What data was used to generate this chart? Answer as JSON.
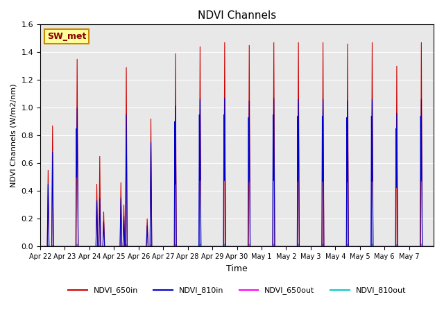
{
  "title": "NDVI Channels",
  "ylabel": "NDVI Channels (W/m2/nm)",
  "xlabel": "Time",
  "ylim": [
    0,
    1.6
  ],
  "background_color": "#e8e8e8",
  "annotation_text": "SW_met",
  "annotation_bg": "#ffff99",
  "annotation_border": "#cc8800",
  "series": {
    "NDVI_650in": {
      "color": "#cc0000",
      "lw": 0.8
    },
    "NDVI_810in": {
      "color": "#0000cc",
      "lw": 0.8
    },
    "NDVI_650out": {
      "color": "#ff00ff",
      "lw": 0.8
    },
    "NDVI_810out": {
      "color": "#00cccc",
      "lw": 0.8
    }
  },
  "days_labels": [
    "Apr 22",
    "Apr 23",
    "Apr 24",
    "Apr 25",
    "Apr 26",
    "Apr 27",
    "Apr 28",
    "Apr 29",
    "Apr 30",
    "May 1",
    "May 2",
    "May 3",
    "May 4",
    "May 5",
    "May 6",
    "May 7"
  ],
  "n_days": 16
}
